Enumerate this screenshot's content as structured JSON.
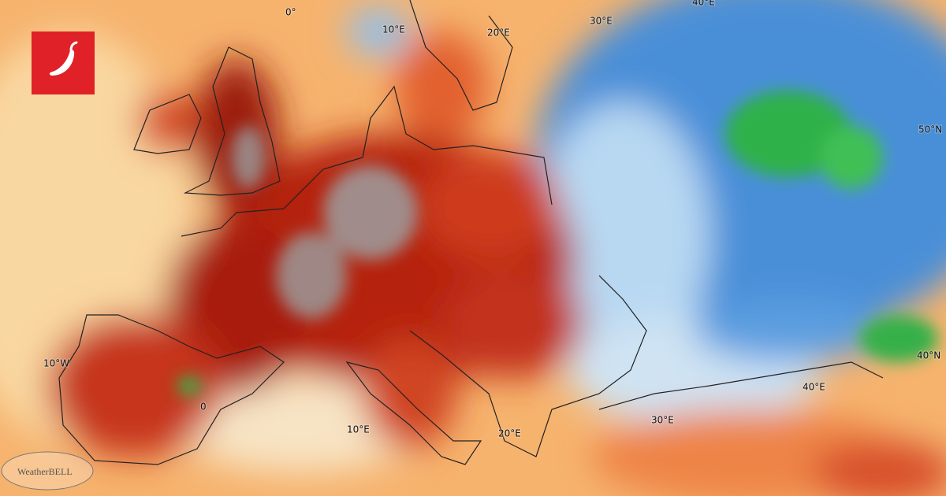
{
  "map": {
    "labels": [
      "0°",
      "10°E",
      "20°E",
      "30°E",
      "40°E",
      "50°N",
      "40°N",
      "10°W",
      "0",
      "10°E",
      "20°E",
      "30°E",
      "40°E"
    ],
    "watermark": "WeatherBELL"
  }
}
